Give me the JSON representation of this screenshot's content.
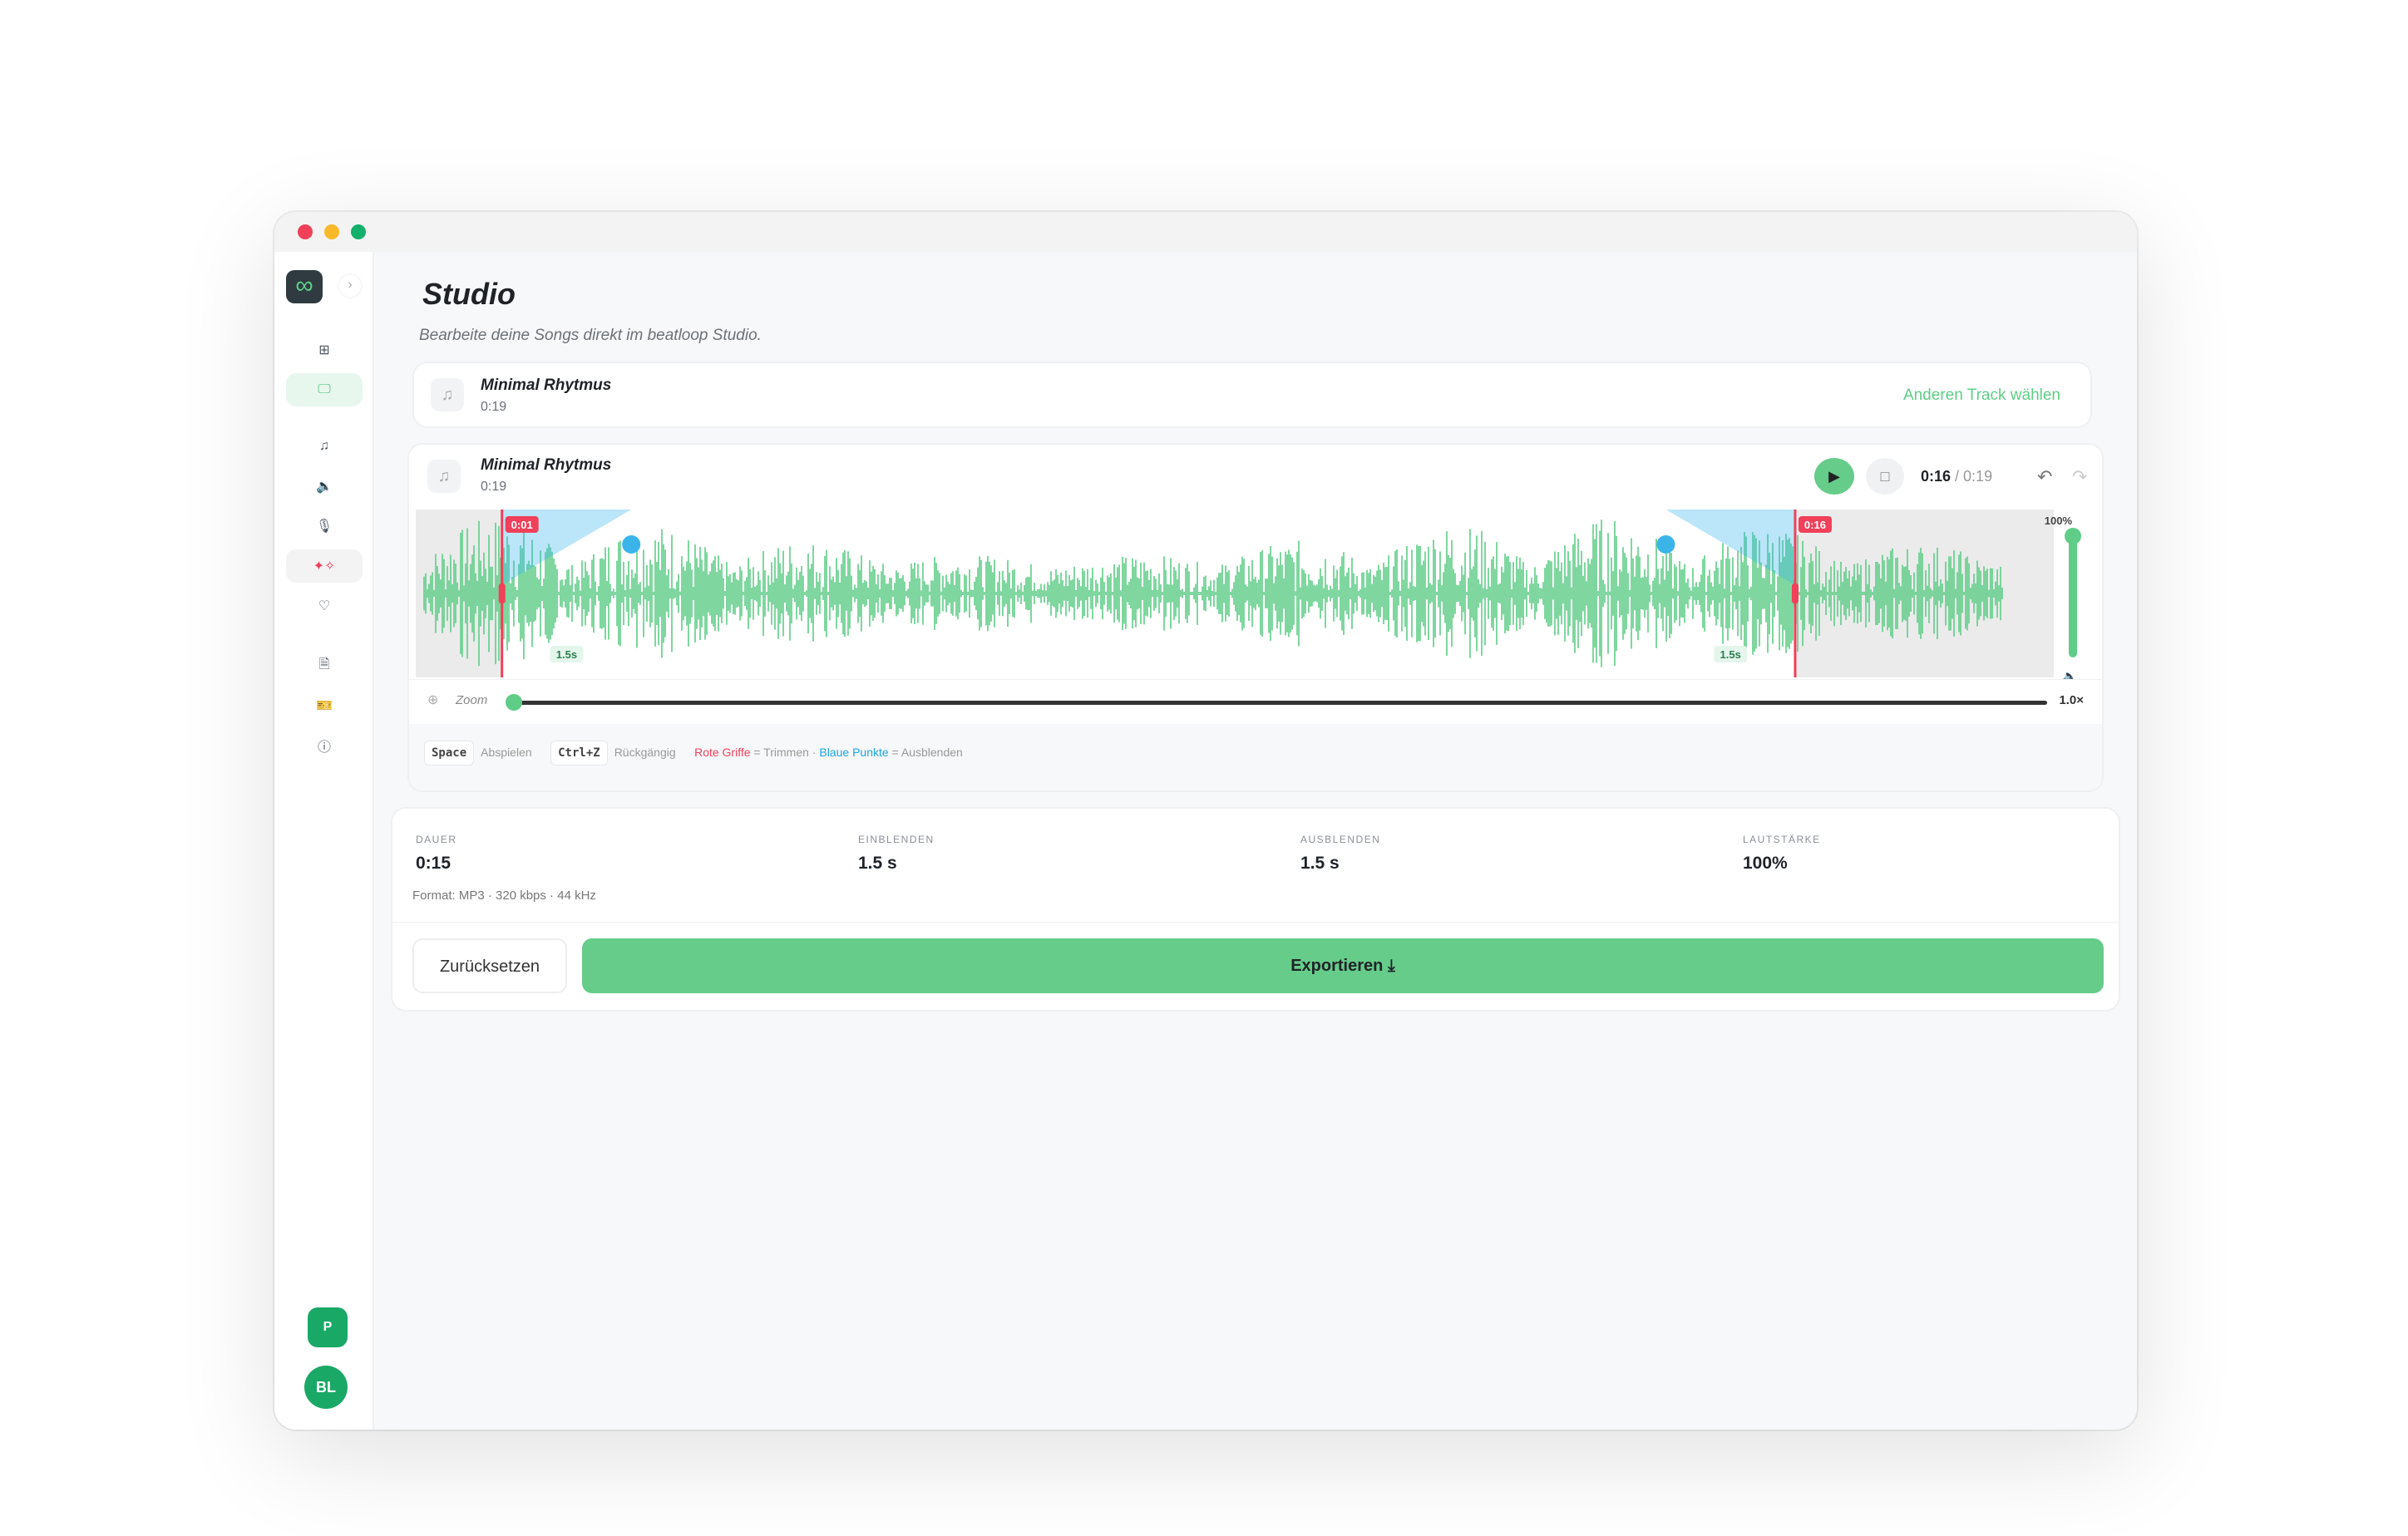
{
  "window": {
    "controls": [
      "close",
      "minimize",
      "maximize"
    ],
    "colors": {
      "close": "#f0405a",
      "minimize": "#f7b928",
      "maximize": "#12b06a"
    }
  },
  "sidebar": {
    "logo": "∞",
    "items": [
      {
        "name": "dashboard",
        "icon": "grid-icon"
      },
      {
        "name": "studio",
        "icon": "monitor-icon",
        "active": true
      },
      {
        "name": "music",
        "icon": "music-note-icon"
      },
      {
        "name": "sounds",
        "icon": "speaker-icon"
      },
      {
        "name": "voice",
        "icon": "microphone-icon"
      },
      {
        "name": "magic",
        "icon": "sparkles-icon"
      },
      {
        "name": "favorites",
        "icon": "heart-icon"
      },
      {
        "name": "documents",
        "icon": "file-icon"
      },
      {
        "name": "tickets",
        "icon": "ticket-icon"
      },
      {
        "name": "help",
        "icon": "help-icon"
      }
    ],
    "plan_badge": "P",
    "user_initials": "BL"
  },
  "header": {
    "title": "Studio",
    "subtitle": "Bearbeite deine Songs direkt im beatloop Studio."
  },
  "selected_track": {
    "name": "Minimal Rhytmus",
    "duration": "0:19",
    "change_label": "Anderen Track wählen"
  },
  "editor": {
    "track_name": "Minimal Rhytmus",
    "track_duration": "0:19",
    "current_time": "0:16",
    "total_time": "0:19",
    "time_sep": " / ",
    "duration_s": 19,
    "trim_start_s": 1,
    "trim_end_s": 16,
    "trim_start_label": "0:01",
    "trim_end_label": "0:16",
    "fade_in_label": "1.5s",
    "fade_out_label": "1.5s",
    "fade_in_s": 1.5,
    "fade_out_s": 1.5,
    "volume_label": "100%",
    "volume_fraction": 1.0,
    "zoom_label": "Zoom",
    "zoom_value": "1.0×",
    "zoom_fraction": 0,
    "colors": {
      "wave": "#5fcd87",
      "trim": "#f0405a",
      "fade": "#3bb4ea"
    }
  },
  "shortcuts": {
    "space_key": "Space",
    "space_action": "Abspielen",
    "undo_key": "Ctrl+Z",
    "undo_action": "Rückgängig",
    "red_label": "Rote Griffe",
    "red_desc": " = Trimmen · ",
    "blue_label": "Blaue Punkte",
    "blue_desc": " = Ausblenden"
  },
  "stats": {
    "duration_label": "DAUER",
    "duration": "0:15",
    "fade_in_label": "EINBLENDEN",
    "fade_in": "1.5 s",
    "fade_out_label": "AUSBLENDEN",
    "fade_out": "1.5 s",
    "volume_label": "LAUTSTÄRKE",
    "volume": "100%",
    "format": "Format: MP3 · 320 kbps · 44 kHz"
  },
  "actions": {
    "reset": "Zurücksetzen",
    "export": "Exportieren"
  }
}
